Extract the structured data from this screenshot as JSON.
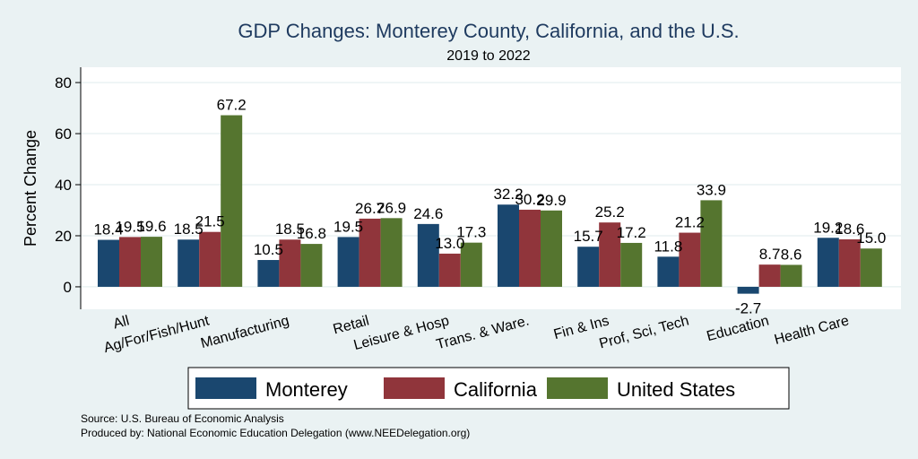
{
  "chart_data": {
    "type": "bar",
    "title": "GDP Changes: Monterey County, California, and the U.S.",
    "subtitle": "2019 to 2022",
    "xlabel": "",
    "ylabel": "Percent Change",
    "ylim": [
      -8.8,
      86
    ],
    "yticks": [
      0,
      20,
      40,
      60,
      80
    ],
    "grid": true,
    "legend_position": "bottom",
    "categories": [
      "All",
      "Ag/For/Fish/Hunt",
      "Manufacturing",
      "Retail",
      "Leisure & Hosp",
      "Trans. & Ware.",
      "Fin & Ins",
      "Prof, Sci, Tech",
      "Education",
      "Health Care"
    ],
    "series": [
      {
        "name": "Monterey",
        "color": "#1a476f",
        "values": [
          18.4,
          18.5,
          10.5,
          19.5,
          24.6,
          32.2,
          15.7,
          11.8,
          -2.7,
          19.2
        ]
      },
      {
        "name": "California",
        "color": "#90353b",
        "values": [
          19.5,
          21.5,
          18.5,
          26.7,
          13.0,
          30.2,
          25.2,
          21.2,
          8.7,
          18.6
        ]
      },
      {
        "name": "United States",
        "color": "#55752f",
        "values": [
          19.6,
          67.2,
          16.8,
          26.9,
          17.3,
          29.9,
          17.2,
          33.9,
          8.6,
          15.0
        ]
      }
    ],
    "notes": [
      "Source: U.S. Bureau of Economic Analysis",
      "Produced by: National Economic Education Delegation (www.NEEDelegation.org)"
    ]
  }
}
